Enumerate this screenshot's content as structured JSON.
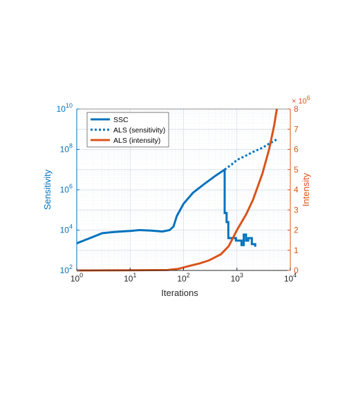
{
  "chart_data": {
    "type": "line",
    "title": "",
    "xlabel": "Iterations",
    "ylabel_left": "Sensitivity",
    "ylabel_right": "Intensity",
    "x_scale": "log",
    "y_left_scale": "log",
    "y_right_scale": "linear",
    "xlim": [
      1,
      10000
    ],
    "ylim_left": [
      100,
      10000000000
    ],
    "ylim_right": [
      0,
      8000000
    ],
    "grid": true,
    "legend_position": "top-left",
    "x_ticks": [
      {
        "value": 1,
        "base": "10",
        "exp": "0"
      },
      {
        "value": 10,
        "base": "10",
        "exp": "1"
      },
      {
        "value": 100,
        "base": "10",
        "exp": "2"
      },
      {
        "value": 1000,
        "base": "10",
        "exp": "3"
      },
      {
        "value": 10000,
        "base": "10",
        "exp": "4"
      }
    ],
    "y_left_ticks": [
      {
        "value": 100,
        "base": "10",
        "exp": "2"
      },
      {
        "value": 10000,
        "base": "10",
        "exp": "4"
      },
      {
        "value": 1000000,
        "base": "10",
        "exp": "6"
      },
      {
        "value": 100000000,
        "base": "10",
        "exp": "8"
      },
      {
        "value": 10000000000,
        "base": "10",
        "exp": "10"
      }
    ],
    "y_right_ticks": [
      "0",
      "1",
      "2",
      "3",
      "4",
      "5",
      "6",
      "7",
      "8"
    ],
    "y_right_multiplier": {
      "prefix": "× 10",
      "exp": "6"
    },
    "colors": {
      "blue": "#0072BD",
      "orange": "#D95319",
      "axis_left": "#0072BD",
      "axis_right": "#D95319",
      "axis_bottom": "#262626",
      "grid": "#dfe6ee"
    },
    "series": [
      {
        "name": "SSC",
        "axis": "left",
        "color": "#0072BD",
        "style": "solid",
        "points": [
          [
            1,
            2200
          ],
          [
            3,
            7000
          ],
          [
            5,
            8000
          ],
          [
            10,
            9000
          ],
          [
            15,
            10000
          ],
          [
            25,
            9500
          ],
          [
            40,
            8500
          ],
          [
            55,
            10000
          ],
          [
            65,
            15000
          ],
          [
            75,
            50000
          ],
          [
            100,
            200000
          ],
          [
            150,
            700000
          ],
          [
            250,
            2000000
          ],
          [
            400,
            5000000
          ],
          [
            590,
            10000000
          ],
          [
            590,
            70000
          ],
          [
            640,
            70000
          ],
          [
            640,
            25000
          ],
          [
            690,
            25000
          ],
          [
            690,
            4000
          ],
          [
            960,
            4000
          ],
          [
            960,
            3000
          ],
          [
            1220,
            3000
          ],
          [
            1220,
            1800
          ],
          [
            1340,
            1800
          ],
          [
            1340,
            6000
          ],
          [
            1480,
            6000
          ],
          [
            1480,
            3000
          ],
          [
            1630,
            3000
          ],
          [
            1630,
            4000
          ],
          [
            1900,
            4000
          ],
          [
            1900,
            2000
          ],
          [
            2200,
            2000
          ],
          [
            2200,
            1500
          ]
        ]
      },
      {
        "name": "ALS (sensitivity)",
        "axis": "left",
        "color": "#0072BD",
        "style": "dotted",
        "points": [
          [
            590,
            10000000
          ],
          [
            800,
            18000000
          ],
          [
            1000,
            30000000
          ],
          [
            1500,
            50000000
          ],
          [
            2000,
            75000000
          ],
          [
            3000,
            120000000
          ],
          [
            4000,
            190000000
          ],
          [
            5700,
            320000000
          ]
        ]
      },
      {
        "name": "ALS (intensity)",
        "axis": "right",
        "color": "#D95319",
        "style": "solid",
        "points": [
          [
            1,
            0
          ],
          [
            3,
            5000
          ],
          [
            10,
            8000
          ],
          [
            50,
            20000
          ],
          [
            80,
            80000
          ],
          [
            120,
            200000
          ],
          [
            200,
            350000
          ],
          [
            300,
            500000
          ],
          [
            500,
            800000
          ],
          [
            700,
            1200000
          ],
          [
            1000,
            2000000
          ],
          [
            1500,
            2800000
          ],
          [
            2000,
            3500000
          ],
          [
            3000,
            4800000
          ],
          [
            4000,
            6000000
          ],
          [
            5000,
            7200000
          ],
          [
            5600,
            8000000
          ]
        ]
      }
    ]
  }
}
